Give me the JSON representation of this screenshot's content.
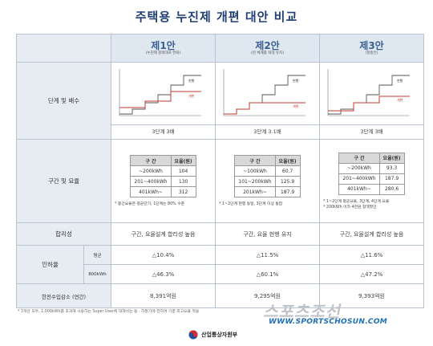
{
  "title": "주택용 누진제 개편 대안 비교",
  "plans": [
    {
      "name": "제1안",
      "subtitle": "(누진제 원래대로 완화)",
      "chart_labels": {
        "upper": "현행",
        "lower": "개편"
      },
      "caption": "3단계 3배",
      "rate_table": {
        "header": [
          "구 간",
          "요율(원)"
        ],
        "rows": [
          [
            "~200kWh",
            "104"
          ],
          [
            "201~400kWh",
            "130"
          ],
          [
            "401kWh~",
            "312"
          ]
        ]
      },
      "notes": [
        "* 중간요율은 평균단가, 1단계는 80% 수준"
      ],
      "rationality": "구간, 요율설계 합리성 높음",
      "avg_increase": "△10.4%",
      "kwh800_increase": "△46.3%",
      "revenue_decrease": "8,391억원"
    },
    {
      "name": "제2안",
      "subtitle": "(현 체계를 최대 유지)",
      "chart_labels": {
        "upper": "현행",
        "lower": "개편"
      },
      "caption": "3단계 3.1배",
      "rate_table": {
        "header": [
          "구 간",
          "요율(원)"
        ],
        "rows": [
          [
            "~100kWh",
            "60.7"
          ],
          [
            "101~200kWh",
            "125.9"
          ],
          [
            "201kWh~",
            "187.9"
          ]
        ]
      },
      "notes": [
        "* 1~2단계 현행 동일, 3단계 이상 통합"
      ],
      "rationality": "구간, 요율 현행 유지",
      "avg_increase": "△11.5%",
      "kwh800_increase": "△60.1%",
      "revenue_decrease": "9,295억원"
    },
    {
      "name": "제3안",
      "subtitle": "(절충안)",
      "chart_labels": {
        "upper": "현행",
        "lower": "개편"
      },
      "caption": "3단계 3배",
      "rate_table": {
        "header": [
          "구 간",
          "요율(원)"
        ],
        "rows": [
          [
            "~200kWh",
            "93.3"
          ],
          [
            "201~400kWh",
            "187.9"
          ],
          [
            "401kWh~",
            "280.6"
          ]
        ]
      },
      "notes": [
        "* 1~2단계 평균요율, 3단계, 4단계 요율",
        "* 200kWh 이하 4천원 정액할인"
      ],
      "rationality": "구간, 요율설계 합리성 높음",
      "avg_increase": "△11.6%",
      "kwh800_increase": "△47.2%",
      "revenue_decrease": "9,393억원"
    }
  ],
  "row_labels": {
    "stages": "단계 및 배수",
    "rates": "구간 및 요율",
    "rationality": "합리성",
    "decrease": "인하율",
    "decrease_avg": "평균",
    "decrease_800": "800kWh",
    "revenue": "한전수입감소 (연간)"
  },
  "footnote": "* 3개안 모두, 1,000kWh를 초과해 사용하는 Super User에 대해서는 동 · 하절기에 한하여 기존 최고요율 적용",
  "watermark": {
    "brand": "스포츠조선",
    "url": "WWW.SPORTSCHOSUN.COM"
  },
  "ministry": "산업통상자원부",
  "colors": {
    "title": "#1f3f75",
    "plan_header_bg": "#dfe7f0",
    "row_label_bg": "#e6ecf2",
    "current_line": "#555555",
    "reform_line": "#c0392b"
  }
}
